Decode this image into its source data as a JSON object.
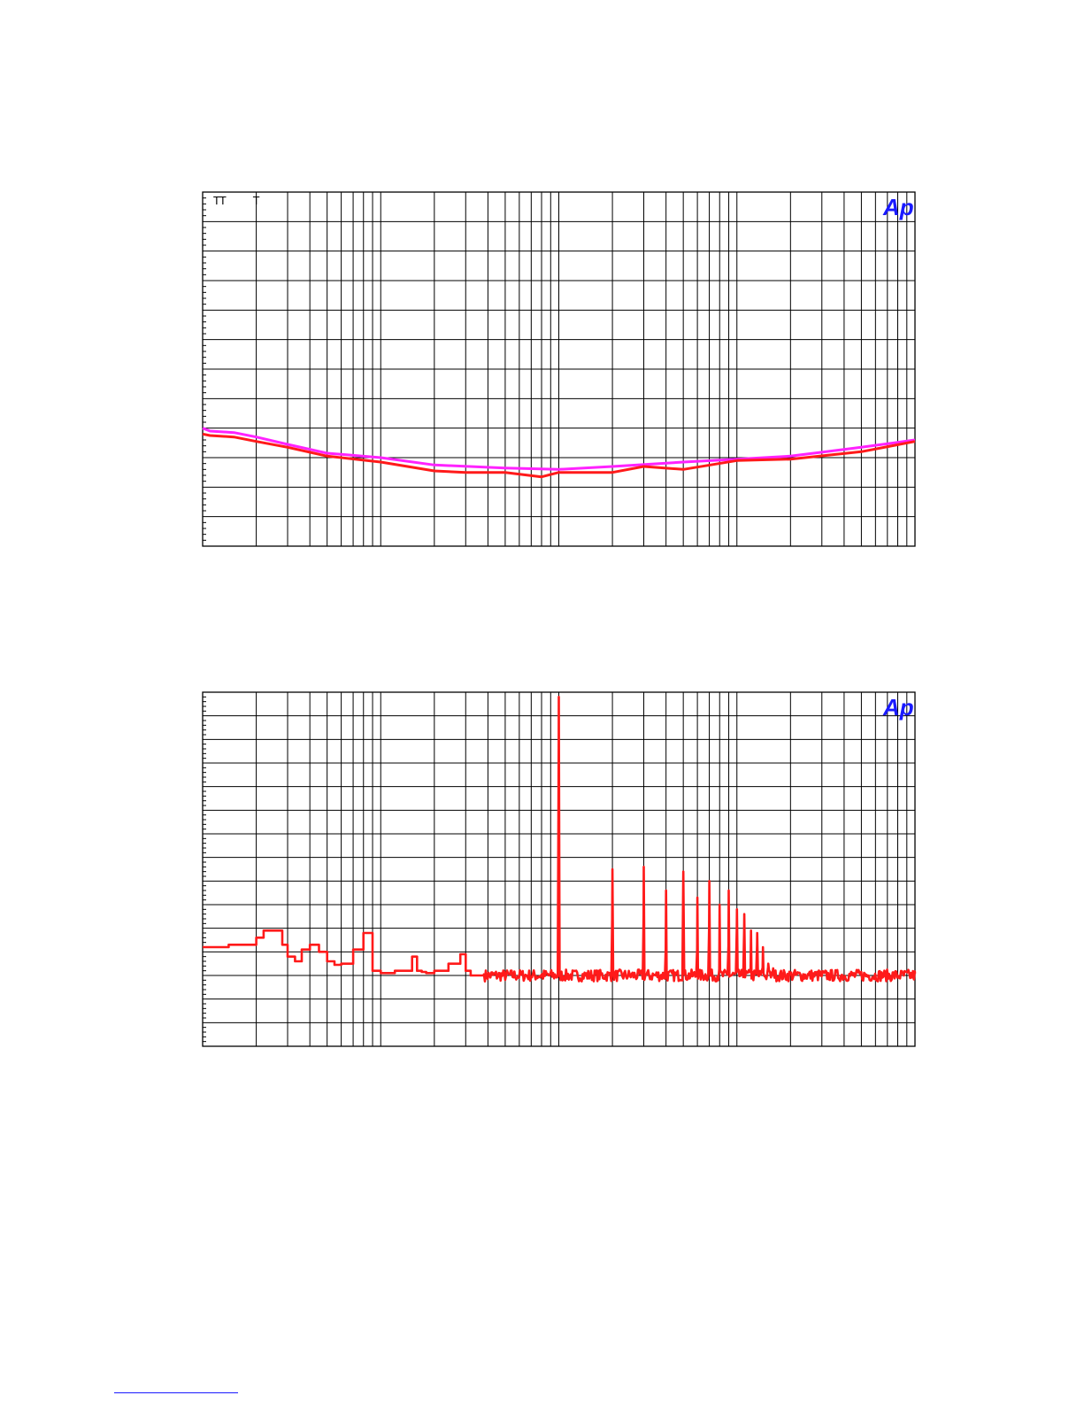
{
  "logo_text": "Ap",
  "colors": {
    "series_red": "#ff1a1a",
    "series_magenta": "#ff22ff",
    "logo": "#1a1aff",
    "grid": "#000000"
  },
  "chart_data": [
    {
      "type": "line",
      "title": "",
      "xlabel": "",
      "ylabel": "",
      "x_scale": "log",
      "xlim": [
        10,
        100000
      ],
      "ylim": [
        0,
        12
      ],
      "grid": true,
      "x_decade_markers": [
        10,
        100,
        1000,
        10000,
        100000
      ],
      "top_markers": [
        "T",
        "T",
        "T"
      ],
      "top_marker_x": [
        12,
        13,
        20
      ],
      "series": [
        {
          "color": "magenta",
          "x": [
            10,
            11,
            15,
            20,
            30,
            50,
            100,
            200,
            500,
            1000,
            2000,
            5000,
            10000,
            20000,
            50000,
            100000
          ],
          "y": [
            4.0,
            3.9,
            3.85,
            3.7,
            3.45,
            3.15,
            3.0,
            2.75,
            2.65,
            2.6,
            2.7,
            2.85,
            2.95,
            3.05,
            3.35,
            3.6
          ]
        },
        {
          "color": "red",
          "x": [
            10,
            11,
            15,
            20,
            30,
            50,
            100,
            200,
            300,
            500,
            800,
            1000,
            2000,
            3000,
            5000,
            10000,
            20000,
            50000,
            100000
          ],
          "y": [
            3.8,
            3.75,
            3.7,
            3.55,
            3.35,
            3.05,
            2.85,
            2.55,
            2.5,
            2.5,
            2.35,
            2.5,
            2.5,
            2.7,
            2.6,
            2.9,
            2.95,
            3.2,
            3.55
          ]
        }
      ]
    },
    {
      "type": "line",
      "title": "",
      "xlabel": "",
      "ylabel": "",
      "x_scale": "log",
      "xlim": [
        10,
        100000
      ],
      "ylim": [
        0,
        15
      ],
      "grid": true,
      "x_decade_markers": [
        10,
        100,
        1000,
        10000,
        100000
      ],
      "series": [
        {
          "color": "red",
          "noise_floor": 3.0,
          "x": [
            10,
            12,
            14,
            17,
            20,
            22,
            25,
            28,
            30,
            33,
            36,
            40,
            45,
            50,
            55,
            60,
            70,
            80,
            90,
            100,
            120,
            150,
            160,
            170,
            180,
            200,
            240,
            280,
            300,
            320,
            380
          ],
          "y": [
            4.2,
            4.2,
            4.3,
            4.3,
            4.6,
            4.9,
            4.9,
            4.3,
            3.8,
            3.6,
            4.1,
            4.3,
            4.0,
            3.6,
            3.45,
            3.5,
            4.1,
            4.8,
            3.2,
            3.1,
            3.2,
            3.8,
            3.2,
            3.15,
            3.1,
            3.2,
            3.5,
            3.9,
            3.2,
            3.0,
            3.05
          ],
          "peaks": [
            {
              "x": 1000,
              "y": 14.8
            },
            {
              "x": 2000,
              "y": 7.5
            },
            {
              "x": 3000,
              "y": 7.6
            },
            {
              "x": 4000,
              "y": 6.6
            },
            {
              "x": 5000,
              "y": 7.4
            },
            {
              "x": 6000,
              "y": 6.3
            },
            {
              "x": 7000,
              "y": 7.0
            },
            {
              "x": 8000,
              "y": 6.0
            },
            {
              "x": 9000,
              "y": 6.6
            },
            {
              "x": 10000,
              "y": 5.8
            },
            {
              "x": 11000,
              "y": 5.6
            },
            {
              "x": 12000,
              "y": 4.9
            },
            {
              "x": 13000,
              "y": 4.8
            },
            {
              "x": 14000,
              "y": 4.2
            },
            {
              "x": 15000,
              "y": 3.5
            },
            {
              "x": 16000,
              "y": 3.3
            }
          ]
        }
      ]
    }
  ]
}
